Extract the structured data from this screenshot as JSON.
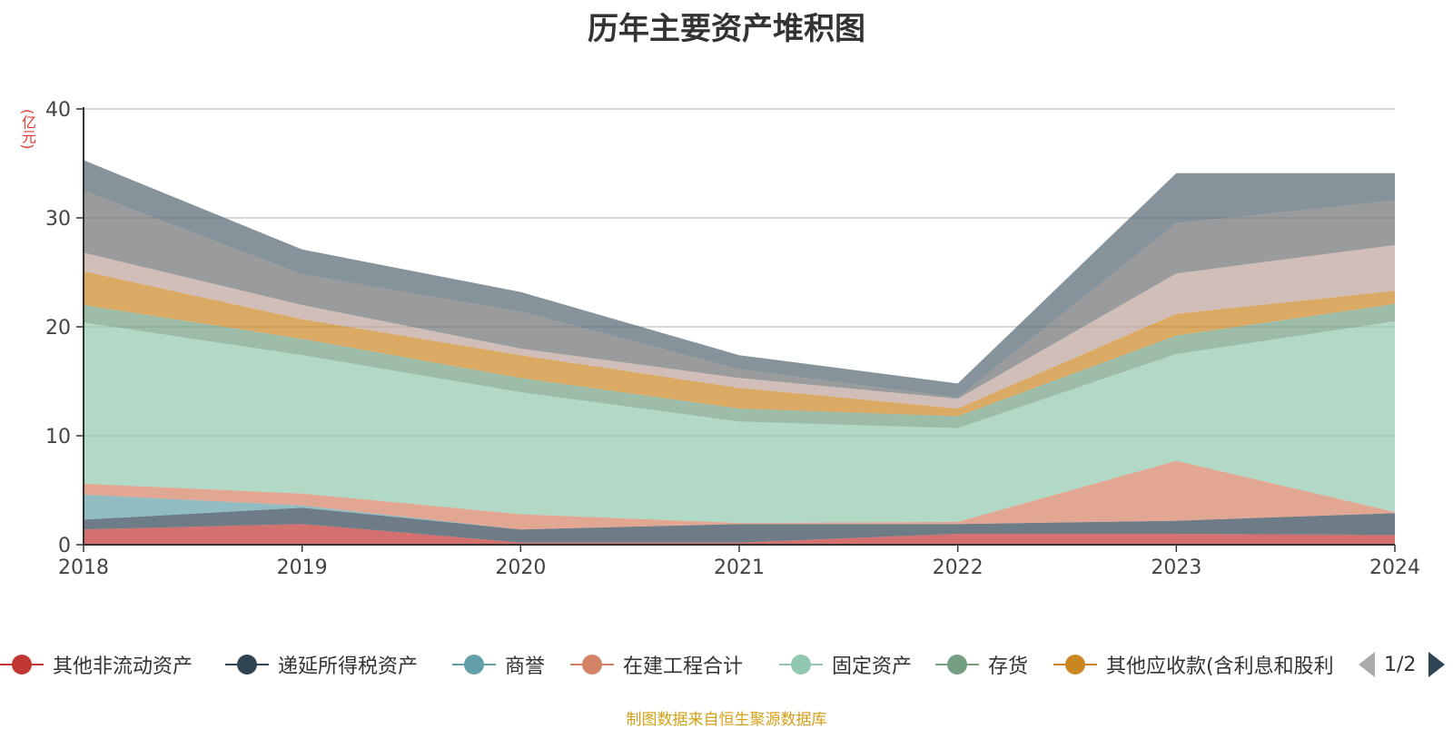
{
  "chart_data": {
    "type": "area",
    "stacked": true,
    "title": "历年主要资产堆积图",
    "ylabel": "(亿元)",
    "xlabel": "",
    "x": [
      "2018",
      "2019",
      "2020",
      "2021",
      "2022",
      "2023",
      "2024"
    ],
    "ylim": [
      0,
      40
    ],
    "yticks": [
      "0",
      "10",
      "20",
      "30",
      "40"
    ],
    "grid": true,
    "legend_position": "bottom",
    "series": [
      {
        "name": "其他非流动资产",
        "color": "#c23531",
        "values": [
          1.4,
          1.9,
          0.2,
          0.2,
          1.0,
          1.0,
          0.9
        ]
      },
      {
        "name": "递延所得税资产",
        "color": "#2f4554",
        "values": [
          0.9,
          1.5,
          1.2,
          1.7,
          0.9,
          1.2,
          2.0
        ]
      },
      {
        "name": "商誉",
        "color": "#61a0a8",
        "values": [
          2.3,
          0.2,
          0.0,
          0.0,
          0.0,
          0.0,
          0.0
        ]
      },
      {
        "name": "在建工程合计",
        "color": "#d48265",
        "values": [
          1.0,
          1.1,
          1.4,
          0.1,
          0.2,
          5.5,
          0.1
        ]
      },
      {
        "name": "固定资产",
        "color": "#91c7ae",
        "values": [
          14.8,
          12.7,
          11.2,
          9.3,
          8.6,
          9.8,
          17.5
        ]
      },
      {
        "name": "存货",
        "color": "#749f83",
        "values": [
          1.6,
          1.5,
          1.3,
          1.2,
          1.1,
          1.7,
          1.6
        ]
      },
      {
        "name": "其他应收款(含利息和股利)",
        "color": "#ca8622",
        "values": [
          3.1,
          1.8,
          2.1,
          1.9,
          0.7,
          2.0,
          1.2
        ]
      },
      {
        "name": "",
        "color": "#bda29a",
        "values": [
          1.7,
          1.3,
          0.6,
          0.9,
          0.9,
          3.7,
          4.2
        ]
      },
      {
        "name": "",
        "color": "#6e7074",
        "values": [
          5.7,
          2.8,
          3.4,
          0.8,
          0.1,
          4.6,
          4.1
        ]
      },
      {
        "name": "",
        "color": "#546570",
        "values": [
          2.8,
          2.3,
          1.8,
          1.3,
          1.3,
          4.6,
          2.5
        ]
      }
    ]
  },
  "legend": {
    "items": [
      {
        "label": "其他非流动资产",
        "color": "#c23531"
      },
      {
        "label": "递延所得税资产",
        "color": "#2f4554"
      },
      {
        "label": "商誉",
        "color": "#61a0a8"
      },
      {
        "label": "在建工程合计",
        "color": "#d48265"
      },
      {
        "label": "固定资产",
        "color": "#91c7ae"
      },
      {
        "label": "存货",
        "color": "#749f83"
      },
      {
        "label": "其他应收款(含利息和股利",
        "color": "#ca8622"
      }
    ],
    "page": "1/2"
  },
  "footer": "制图数据来自恒生聚源数据库"
}
